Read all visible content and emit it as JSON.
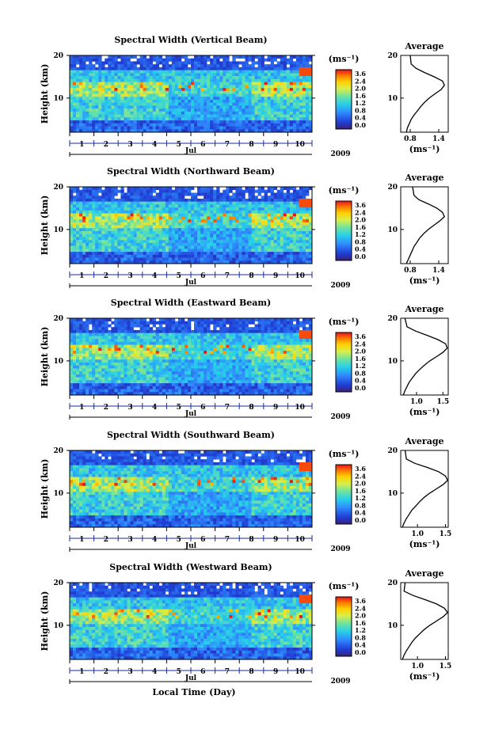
{
  "figure": {
    "xlabel": "Local Time (Day)",
    "month_label": "Jul",
    "year_label": "2009",
    "ylabel": "Height (km)",
    "y_ticks": [
      "20",
      "10"
    ],
    "day_labels": [
      "1",
      "2",
      "3",
      "4",
      "5",
      "6",
      "7",
      "8",
      "9",
      "10"
    ],
    "colorbar_unit": "(ms⁻¹)",
    "colorbar_ticks": [
      "3.6",
      "2.4",
      "2.0",
      "1.6",
      "1.2",
      "0.8",
      "0.4",
      "0.0"
    ],
    "avg_title": "Average",
    "avg_unit": "(ms⁻¹)"
  },
  "chart_data": [
    {
      "type": "heatmap",
      "title": "Spectral Width (Vertical Beam)",
      "x_range_days": [
        0.5,
        10.5
      ],
      "y_range_km": [
        2,
        20
      ],
      "value_range": [
        0.0,
        3.6
      ],
      "avg_profile": {
        "title": "Average",
        "xlabel": "(ms⁻¹)",
        "x_ticks": [
          0.8,
          1.4
        ],
        "xlim": [
          0.6,
          1.6
        ],
        "points": [
          [
            0.8,
            20
          ],
          [
            0.82,
            18
          ],
          [
            0.92,
            17
          ],
          [
            1.1,
            16
          ],
          [
            1.3,
            15
          ],
          [
            1.48,
            14
          ],
          [
            1.52,
            13
          ],
          [
            1.45,
            12
          ],
          [
            1.32,
            11
          ],
          [
            1.2,
            10
          ],
          [
            1.1,
            9
          ],
          [
            1.02,
            8
          ],
          [
            0.95,
            7
          ],
          [
            0.88,
            6
          ],
          [
            0.82,
            5
          ],
          [
            0.78,
            4
          ],
          [
            0.74,
            3
          ],
          [
            0.72,
            2
          ]
        ]
      }
    },
    {
      "type": "heatmap",
      "title": "Spectral Width (Northward Beam)",
      "x_range_days": [
        0.5,
        10.5
      ],
      "y_range_km": [
        2,
        20
      ],
      "value_range": [
        0.0,
        3.6
      ],
      "avg_profile": {
        "title": "Average",
        "xlabel": "(ms⁻¹)",
        "x_ticks": [
          0.8,
          1.4
        ],
        "xlim": [
          0.6,
          1.6
        ],
        "points": [
          [
            0.85,
            20
          ],
          [
            0.88,
            18
          ],
          [
            0.98,
            17
          ],
          [
            1.18,
            16
          ],
          [
            1.36,
            15
          ],
          [
            1.48,
            14
          ],
          [
            1.52,
            13
          ],
          [
            1.42,
            12
          ],
          [
            1.3,
            11
          ],
          [
            1.18,
            10
          ],
          [
            1.08,
            9
          ],
          [
            1.0,
            8
          ],
          [
            0.94,
            7
          ],
          [
            0.88,
            6
          ],
          [
            0.84,
            5
          ],
          [
            0.8,
            4
          ],
          [
            0.76,
            3
          ],
          [
            0.72,
            2
          ]
        ]
      }
    },
    {
      "type": "heatmap",
      "title": "Spectral Width (Eastward Beam)",
      "x_range_days": [
        0.5,
        10.5
      ],
      "y_range_km": [
        2,
        20
      ],
      "value_range": [
        0.0,
        3.6
      ],
      "avg_profile": {
        "title": "Average",
        "xlabel": "(ms⁻¹)",
        "x_ticks": [
          1.0,
          1.5
        ],
        "xlim": [
          0.7,
          1.6
        ],
        "points": [
          [
            0.78,
            20
          ],
          [
            0.82,
            18
          ],
          [
            0.98,
            17
          ],
          [
            1.2,
            16
          ],
          [
            1.4,
            15
          ],
          [
            1.55,
            14
          ],
          [
            1.58,
            13
          ],
          [
            1.5,
            12
          ],
          [
            1.38,
            11
          ],
          [
            1.25,
            10
          ],
          [
            1.15,
            9
          ],
          [
            1.06,
            8
          ],
          [
            0.98,
            7
          ],
          [
            0.92,
            6
          ],
          [
            0.86,
            5
          ],
          [
            0.82,
            4
          ],
          [
            0.78,
            3
          ],
          [
            0.75,
            2
          ]
        ]
      }
    },
    {
      "type": "heatmap",
      "title": "Spectral Width (Southward Beam)",
      "x_range_days": [
        0.5,
        10.5
      ],
      "y_range_km": [
        2,
        20
      ],
      "value_range": [
        0.0,
        3.6
      ],
      "avg_profile": {
        "title": "Average",
        "xlabel": "(ms⁻¹)",
        "x_ticks": [
          1.0,
          1.5
        ],
        "xlim": [
          0.7,
          1.55
        ],
        "points": [
          [
            0.78,
            20
          ],
          [
            0.8,
            18
          ],
          [
            0.95,
            17
          ],
          [
            1.18,
            16
          ],
          [
            1.38,
            15
          ],
          [
            1.5,
            14
          ],
          [
            1.54,
            13
          ],
          [
            1.46,
            12
          ],
          [
            1.34,
            11
          ],
          [
            1.22,
            10
          ],
          [
            1.12,
            9
          ],
          [
            1.04,
            8
          ],
          [
            0.97,
            7
          ],
          [
            0.9,
            6
          ],
          [
            0.85,
            5
          ],
          [
            0.8,
            4
          ],
          [
            0.76,
            3
          ],
          [
            0.73,
            2
          ]
        ]
      }
    },
    {
      "type": "heatmap",
      "title": "Spectral Width (Westward Beam)",
      "x_range_days": [
        0.5,
        10.5
      ],
      "y_range_km": [
        2,
        20
      ],
      "value_range": [
        0.0,
        3.6
      ],
      "avg_profile": {
        "title": "Average",
        "xlabel": "(ms⁻¹)",
        "x_ticks": [
          1.0,
          1.5
        ],
        "xlim": [
          0.7,
          1.55
        ],
        "points": [
          [
            0.78,
            20
          ],
          [
            0.76,
            18
          ],
          [
            0.92,
            17
          ],
          [
            1.14,
            16
          ],
          [
            1.34,
            15
          ],
          [
            1.48,
            14
          ],
          [
            1.54,
            13
          ],
          [
            1.46,
            12
          ],
          [
            1.34,
            11
          ],
          [
            1.22,
            10
          ],
          [
            1.12,
            9
          ],
          [
            1.04,
            8
          ],
          [
            0.96,
            7
          ],
          [
            0.9,
            6
          ],
          [
            0.85,
            5
          ],
          [
            0.8,
            4
          ],
          [
            0.76,
            3
          ],
          [
            0.73,
            2
          ]
        ]
      }
    }
  ]
}
